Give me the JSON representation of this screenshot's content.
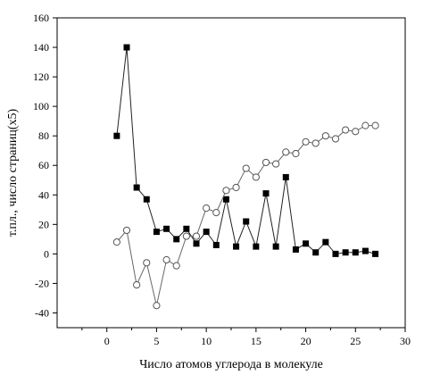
{
  "chart_data": {
    "type": "line",
    "xlabel": "Число атомов углерода в молекуле",
    "ylabel": "т.пл., число страниц(x5)",
    "xlim": [
      -5,
      30
    ],
    "ylim": [
      -50,
      160
    ],
    "xticks": [
      0,
      5,
      10,
      15,
      20,
      25,
      30
    ],
    "yticks": [
      -40,
      -20,
      0,
      20,
      40,
      60,
      80,
      100,
      120,
      140,
      160
    ],
    "grid": false,
    "legend": "none",
    "series": [
      {
        "marker": "filled-square",
        "color": "#000000",
        "x": [
          1,
          2,
          3,
          4,
          5,
          6,
          7,
          8,
          9,
          10,
          11,
          12,
          13,
          14,
          15,
          16,
          17,
          18,
          19,
          20,
          21,
          22,
          23,
          24,
          25,
          26,
          27
        ],
        "y": [
          80,
          140,
          45,
          37,
          15,
          17,
          10,
          17,
          7,
          15,
          6,
          37,
          5,
          22,
          5,
          41,
          5,
          52,
          3,
          7,
          1,
          8,
          0,
          1,
          1,
          2,
          0
        ]
      },
      {
        "marker": "open-circle",
        "color": "#555555",
        "x": [
          1,
          2,
          3,
          4,
          5,
          6,
          7,
          8,
          9,
          10,
          11,
          12,
          13,
          14,
          15,
          16,
          17,
          18,
          19,
          20,
          21,
          22,
          23,
          24,
          25,
          26,
          27
        ],
        "y": [
          8,
          16,
          -21,
          -6,
          -35,
          -4,
          -8,
          12,
          12,
          31,
          28,
          43,
          45,
          58,
          52,
          62,
          61,
          69,
          68,
          76,
          75,
          80,
          78,
          84,
          83,
          87,
          87
        ]
      }
    ]
  }
}
